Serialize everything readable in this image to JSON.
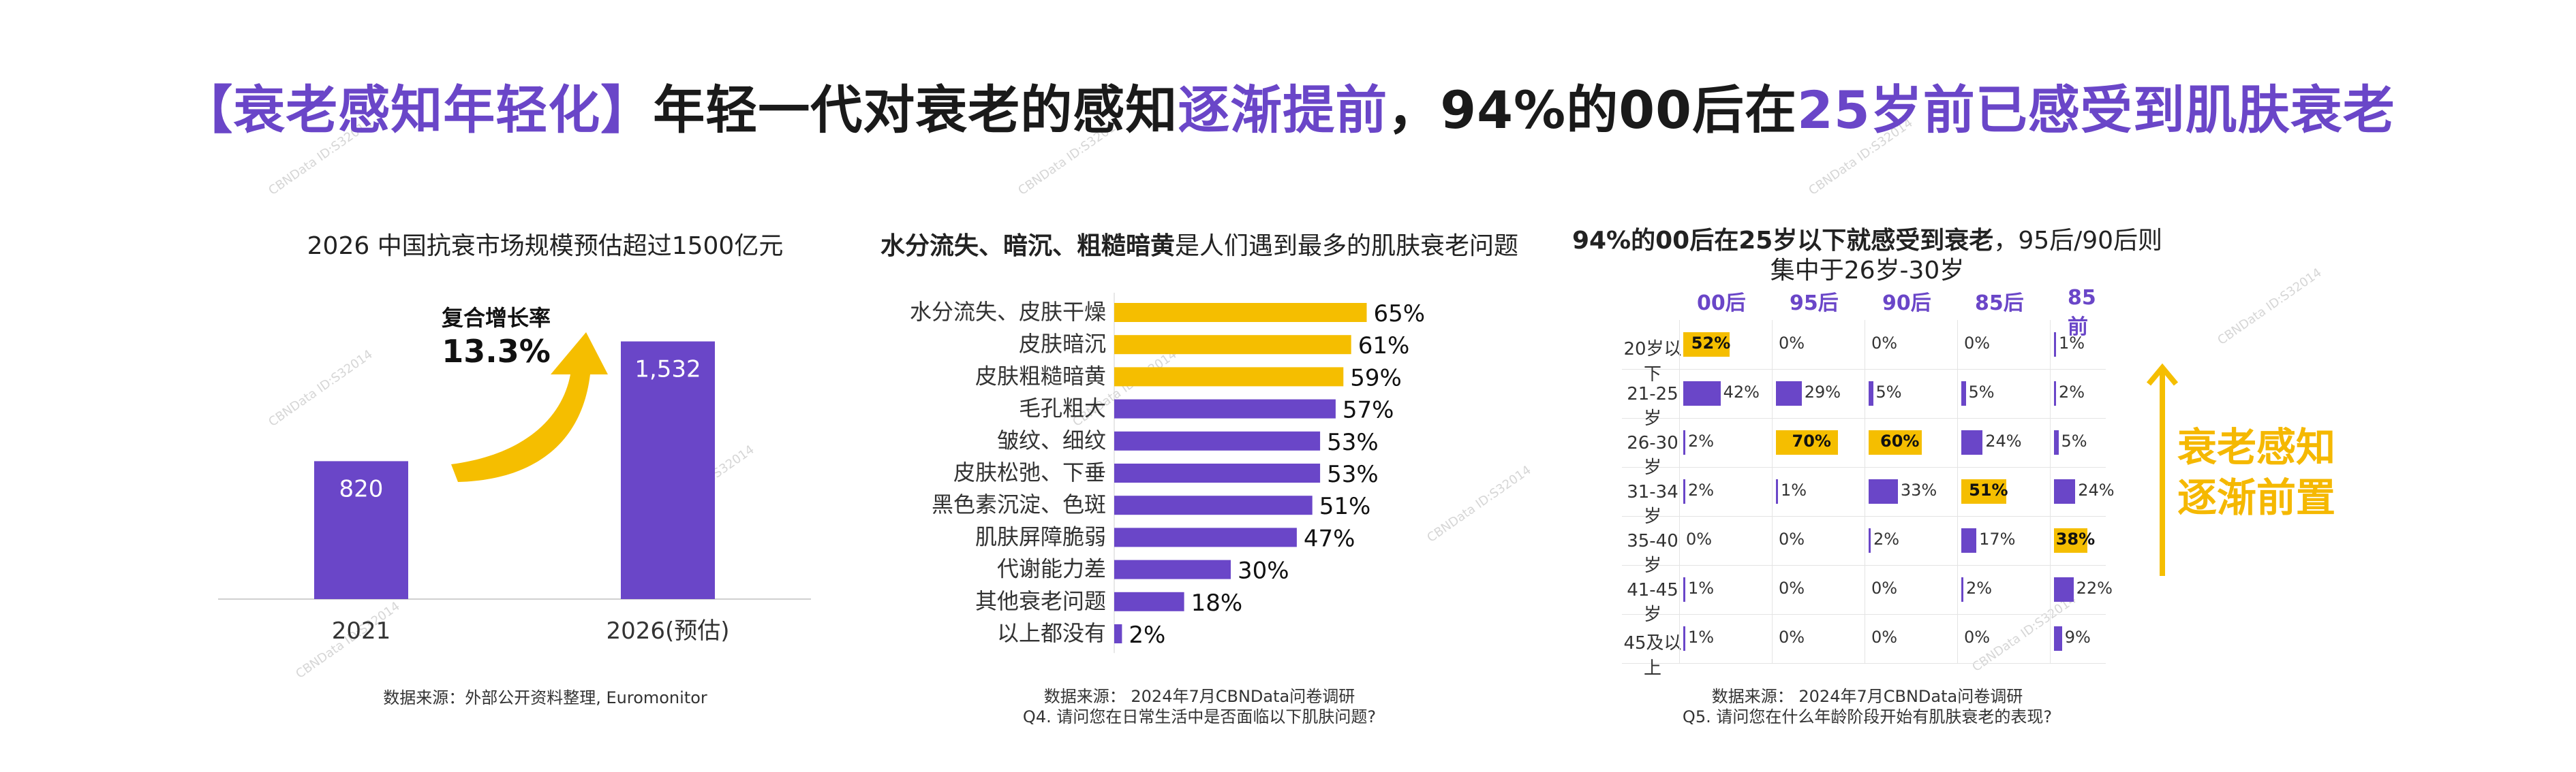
{
  "title": {
    "part1": "【衰老感知年轻化】",
    "part2": "年轻一代对衰老的感知",
    "part3": "逐渐提前",
    "part4": "，94%的00后在",
    "part5": "25岁前已感受到肌肤衰老"
  },
  "colors": {
    "purple": "#6a46c8",
    "yellow": "#f5be00",
    "title_purple": "#6a46c8"
  },
  "watermark": "CBNData ID:S32014",
  "left_panel": {
    "title": "2026 中国抗衰市场规模预估超过1500亿元",
    "growth_label": "复合增长率",
    "growth_value": "13.3%",
    "source": "数据来源：外部公开资料整理, Euromonitor"
  },
  "middle_panel": {
    "title_bold": "水分流失、暗沉、粗糙暗黄",
    "title_rest": "是人们遇到最多的肌肤衰老问题",
    "source_line1": "数据来源：  2024年7月CBNData问卷调研",
    "source_line2": "Q4. 请问您在日常生活中是否面临以下肌肤问题?"
  },
  "right_panel": {
    "title_bold": "94%的00后在25岁以下就感受到衰老",
    "title_rest": "，95后/90后则",
    "title_line2": "集中于26岁-30岁",
    "tag_line1": "衰老感知",
    "tag_line2": "逐渐前置",
    "source_line1": "数据来源：  2024年7月CBNData问卷调研",
    "source_line2": "Q5. 请问您在什么年龄阶段开始有肌肤衰老的表现?"
  },
  "chart_data": [
    {
      "type": "bar",
      "title": "2026 中国抗衰市场规模预估超过1500亿元",
      "categories": [
        "2021",
        "2026(预估)"
      ],
      "values": [
        820,
        1532
      ],
      "value_labels": [
        "820",
        "1,532"
      ],
      "ylim": [
        0,
        1700
      ],
      "xlabel": "",
      "ylabel": "",
      "annotation": "复合增长率 13.3%"
    },
    {
      "type": "bar",
      "orientation": "horizontal",
      "title": "水分流失、暗沉、粗糙暗黄是人们遇到最多的肌肤衰老问题",
      "categories": [
        "水分流失、皮肤干燥",
        "皮肤暗沉",
        "皮肤粗糙暗黄",
        "毛孔粗大",
        "皱纹、细纹",
        "皮肤松弛、下垂",
        "黑色素沉淀、色斑",
        "肌肤屏障脆弱",
        "代谢能力差",
        "其他衰老问题",
        "以上都没有"
      ],
      "values": [
        65,
        61,
        59,
        57,
        53,
        53,
        51,
        47,
        30,
        18,
        2
      ],
      "value_labels": [
        "65%",
        "61%",
        "59%",
        "57%",
        "53%",
        "53%",
        "51%",
        "47%",
        "30%",
        "18%",
        "2%"
      ],
      "highlight_top": 3,
      "ylim": [
        0,
        100
      ]
    },
    {
      "type": "table",
      "title": "94%的00后在25岁以下就感受到衰老，95后/90后则集中于26岁-30岁",
      "columns": [
        "00后",
        "95后",
        "90后",
        "85后",
        "85前"
      ],
      "rows": [
        "20岁以下",
        "21-25岁",
        "26-30岁",
        "31-34岁",
        "35-40岁",
        "41-45岁",
        "45及以上"
      ],
      "values": [
        [
          52,
          0,
          0,
          0,
          1
        ],
        [
          42,
          29,
          5,
          5,
          2
        ],
        [
          2,
          70,
          60,
          24,
          5
        ],
        [
          2,
          1,
          33,
          51,
          24
        ],
        [
          0,
          0,
          2,
          17,
          38
        ],
        [
          1,
          0,
          0,
          2,
          22
        ],
        [
          1,
          0,
          0,
          0,
          9
        ]
      ],
      "highlight": [
        [
          0,
          0
        ],
        [
          2,
          1
        ],
        [
          2,
          2
        ],
        [
          3,
          3
        ],
        [
          4,
          4
        ]
      ]
    }
  ]
}
